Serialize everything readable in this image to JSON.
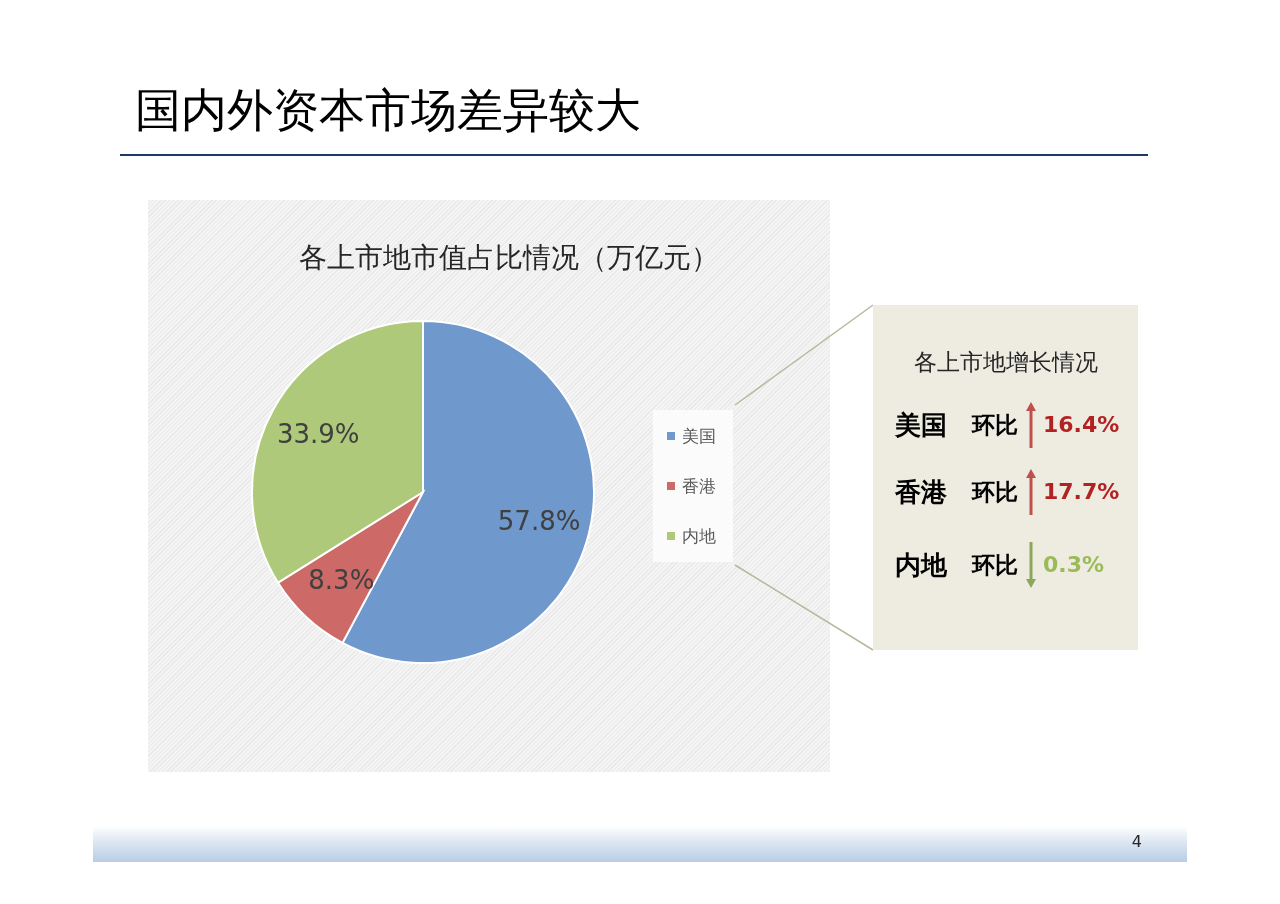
{
  "chart_data": [
    {
      "type": "pie",
      "title": "国内外资本市场差异较大",
      "subtitle": "各上市地市值占比情况（万亿元）",
      "categories": [
        "美国",
        "香港",
        "内地"
      ],
      "values": [
        57.8,
        8.3,
        33.9
      ],
      "colors": [
        "#6f98cc",
        "#cd6a67",
        "#aec97a"
      ],
      "value_labels": [
        "57.8%",
        "8.3%",
        "33.9%"
      ],
      "legend": "right",
      "annotations": [
        "4"
      ]
    },
    {
      "type": "other",
      "title": "各上市地增长情况",
      "annotations": [
        "美国",
        "环比",
        "16.4%",
        "香港",
        "环比",
        "17.7%",
        "内地",
        "环比",
        "0.3%"
      ]
    }
  ]
}
